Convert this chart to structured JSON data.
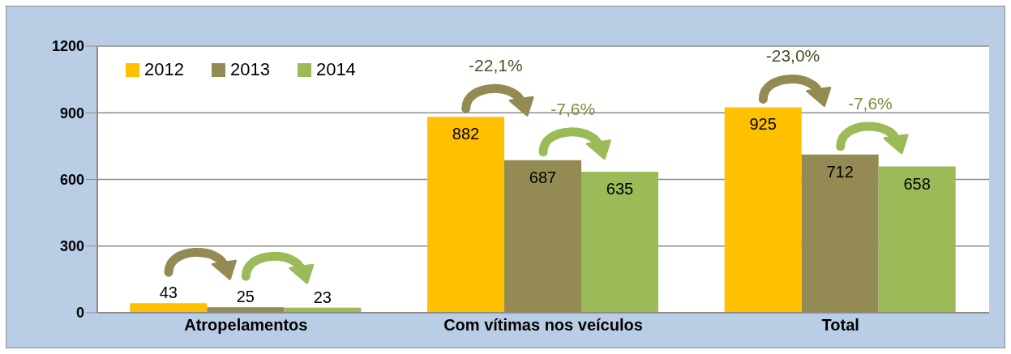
{
  "chart_data": {
    "type": "bar",
    "categories": [
      "Atropelamentos",
      "Com vítimas nos veículos",
      "Total"
    ],
    "series": [
      {
        "name": "2012",
        "color": "#ffc000",
        "values": [
          43,
          882,
          925
        ]
      },
      {
        "name": "2013",
        "color": "#948a54",
        "values": [
          25,
          687,
          712
        ]
      },
      {
        "name": "2014",
        "color": "#9bbb59",
        "values": [
          23,
          635,
          658
        ]
      }
    ],
    "ylim": [
      0,
      1200
    ],
    "yticks": [
      0,
      300,
      600,
      900,
      1200
    ],
    "grid": "y",
    "legend": "top left",
    "data_labels": true,
    "annotations": [
      "-22,1%",
      "-7,6%",
      "-23,0%",
      "-7,6%"
    ]
  }
}
